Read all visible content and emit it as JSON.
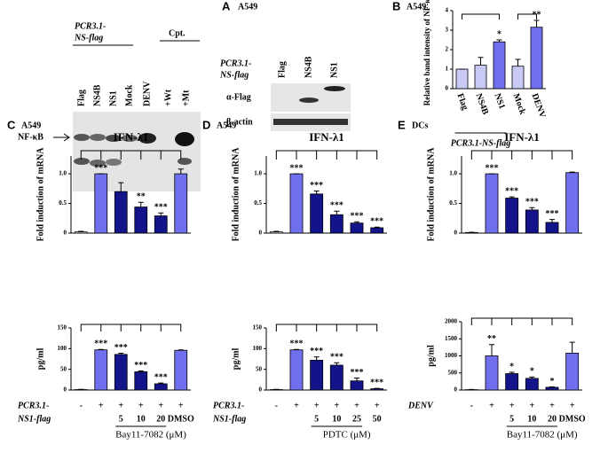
{
  "panel_a": {
    "letter": "A",
    "cell": "A549",
    "left_blot": {
      "construct": [
        "PCR3.1-",
        "NS-flag"
      ],
      "lanes": [
        "Flag",
        "NS4B",
        "NS1",
        "Mock",
        "DENV",
        "+Wt",
        "+Mt"
      ],
      "treatment": "Cpt.",
      "band": "NF-κB"
    },
    "right_blot": {
      "construct": [
        "PCR3.1-",
        "NS-flag"
      ],
      "lanes": [
        "Flag",
        "NS4B",
        "NS1"
      ],
      "rows": [
        "α-Flag",
        "β-actin"
      ]
    }
  },
  "chart_data": [
    {
      "type": "bar",
      "panel": "B",
      "cell": "A549",
      "ylabel": "Relative band intensity of NF-κB",
      "categories": [
        "Flag",
        "NS4B",
        "NS1",
        "Mock",
        "DENV"
      ],
      "values": [
        1,
        1.2,
        2.4,
        1.15,
        3.15
      ],
      "errors": [
        0,
        0.4,
        0.1,
        0.35,
        0.35
      ],
      "annotations": [
        null,
        null,
        "*",
        null,
        "**"
      ],
      "colors": [
        "#c9c9f5",
        "#c9c9f5",
        "#7070ee",
        "#c9c9f5",
        "#7070ee"
      ],
      "group_label": "PCR3.1-NS-flag",
      "ylim": [
        0,
        4
      ],
      "yticks": [
        0,
        1,
        2,
        3,
        4
      ]
    },
    {
      "type": "bar",
      "panel": "C",
      "cell": "A549",
      "title": "IFN-λ1",
      "ylabel": "Fold induction of mRNA",
      "values": [
        0.02,
        1.0,
        0.7,
        0.44,
        0.29,
        1.0
      ],
      "errors": [
        0.01,
        0,
        0.15,
        0.08,
        0.05,
        0.08
      ],
      "annotations": [
        null,
        "***",
        null,
        "**",
        "***",
        null
      ],
      "colors": [
        "#ffffff",
        "#7070ee",
        "#14148a",
        "#14148a",
        "#14148a",
        "#7070ee"
      ],
      "ylim": [
        0,
        1.3
      ],
      "yticks": [
        0,
        0.5,
        {
          "value": 1,
          "label": "1.0"
        }
      ]
    },
    {
      "type": "bar",
      "ylabel": "pg/ml",
      "values": [
        1,
        97,
        86,
        44,
        15,
        96
      ],
      "errors": [
        0.5,
        1,
        3,
        2,
        2,
        1
      ],
      "annotations": [
        null,
        "***",
        "***",
        "***",
        "***",
        null
      ],
      "colors": [
        "#ffffff",
        "#7070ee",
        "#14148a",
        "#14148a",
        "#14148a",
        "#7070ee"
      ],
      "ylim": [
        0,
        150
      ],
      "yticks": [
        0,
        50,
        100,
        150
      ],
      "condition": [
        "PCR3.1-",
        "NS1-flag"
      ],
      "signs": [
        "-",
        "+",
        "+",
        "+",
        "+",
        "+"
      ],
      "categories": [
        null,
        null,
        "5",
        "10",
        "20",
        "DMSO"
      ],
      "xlabel": "Bay11-7082 (μM)"
    },
    {
      "type": "bar",
      "panel": "D",
      "cell": "A549",
      "title": "IFN-λ1",
      "ylabel": "Fold induction of mRNA",
      "values": [
        0.02,
        1.0,
        0.66,
        0.31,
        0.17,
        0.09
      ],
      "errors": [
        0.01,
        0,
        0.05,
        0.06,
        0.02,
        0.01
      ],
      "annotations": [
        null,
        "***",
        "***",
        "***",
        "***",
        "***"
      ],
      "colors": [
        "#ffffff",
        "#7070ee",
        "#14148a",
        "#14148a",
        "#14148a",
        "#14148a"
      ],
      "ylim": [
        0,
        1.3
      ],
      "yticks": [
        0,
        0.5,
        {
          "value": 1,
          "label": "1.0"
        }
      ]
    },
    {
      "type": "bar",
      "ylabel": "pg/ml",
      "values": [
        1,
        97,
        72,
        60,
        22,
        3
      ],
      "errors": [
        0.5,
        1,
        8,
        6,
        7,
        1
      ],
      "annotations": [
        null,
        "***",
        "***",
        "***",
        "***",
        "***"
      ],
      "colors": [
        "#ffffff",
        "#7070ee",
        "#14148a",
        "#14148a",
        "#14148a",
        "#14148a"
      ],
      "ylim": [
        0,
        150
      ],
      "yticks": [
        0,
        50,
        100,
        150
      ],
      "condition": [
        "PCR3.1-",
        "NS1-flag"
      ],
      "signs": [
        "-",
        "+",
        "+",
        "+",
        "+",
        "+"
      ],
      "categories": [
        null,
        null,
        "5",
        "10",
        "25",
        "50"
      ],
      "xlabel": "PDTC (μM)"
    },
    {
      "type": "bar",
      "panel": "E",
      "cell": "DCs",
      "title": "IFN-λ1",
      "ylabel": "Fold induction of mRNA",
      "values": [
        0.01,
        1.0,
        0.59,
        0.39,
        0.18,
        1.02
      ],
      "errors": [
        0.005,
        0,
        0.02,
        0.04,
        0.05,
        0.01
      ],
      "annotations": [
        null,
        "***",
        "***",
        "***",
        "***",
        null
      ],
      "colors": [
        "#ffffff",
        "#7070ee",
        "#14148a",
        "#14148a",
        "#14148a",
        "#7070ee"
      ],
      "ylim": [
        0,
        1.3
      ],
      "yticks": [
        0,
        0.5,
        {
          "value": 1,
          "label": "1.0"
        }
      ]
    },
    {
      "type": "bar",
      "ylabel": "pg/ml",
      "values": [
        10,
        1000,
        480,
        340,
        80,
        1080
      ],
      "errors": [
        5,
        330,
        40,
        40,
        10,
        320
      ],
      "annotations": [
        null,
        "**",
        "*",
        "*",
        "*",
        null
      ],
      "colors": [
        "#ffffff",
        "#7070ee",
        "#14148a",
        "#14148a",
        "#14148a",
        "#7070ee"
      ],
      "ylim": [
        0,
        2000
      ],
      "yticks": [
        0,
        500,
        1000,
        1500,
        2000
      ],
      "condition": [
        "DENV"
      ],
      "signs": [
        "-",
        "+",
        "+",
        "+",
        "+",
        "+"
      ],
      "categories": [
        null,
        null,
        "5",
        "10",
        "20",
        "DMSO"
      ],
      "xlabel": "Bay11-7082 (μM)"
    }
  ]
}
